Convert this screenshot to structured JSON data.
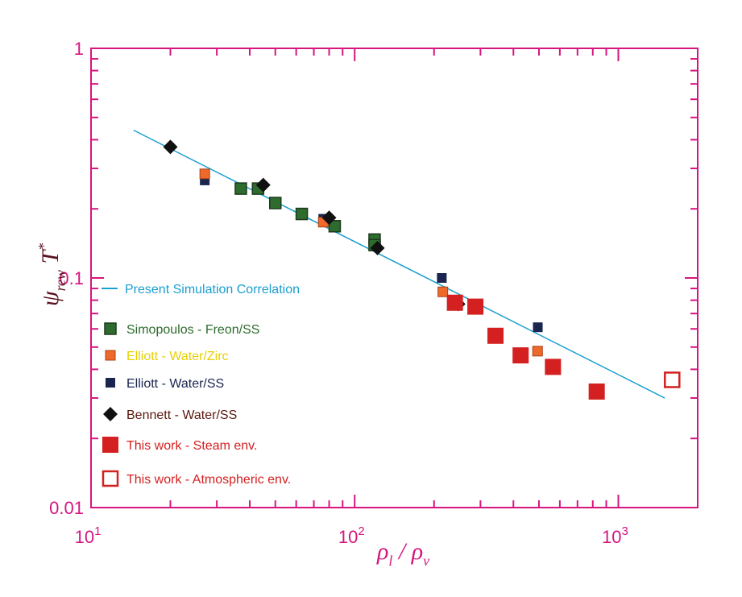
{
  "chart_data": {
    "type": "scatter",
    "x_scale": "log",
    "y_scale": "log",
    "xlim": [
      10,
      2000
    ],
    "ylim": [
      0.01,
      1
    ],
    "x_ticks": [
      {
        "value": 10,
        "label": "10",
        "exp": "1"
      },
      {
        "value": 100,
        "label": "10",
        "exp": "2"
      },
      {
        "value": 1000,
        "label": "10",
        "exp": "3"
      }
    ],
    "y_ticks": [
      {
        "value": 1,
        "label": "1"
      },
      {
        "value": 0.1,
        "label": "0.1"
      },
      {
        "value": 0.01,
        "label": "0.01"
      }
    ],
    "xlabel": {
      "rho": "ρ",
      "sub_l": "l",
      "slash": " / ",
      "sub_v": "v"
    },
    "ylabel": {
      "psi": "ψ",
      "sub": "rew",
      "T": "T",
      "sup": "*"
    },
    "colors": {
      "axis": "#d6157f",
      "correlation": "#1b9fce",
      "simopoulos": "#2e6b2e",
      "elliott_zirc_fill": "#ef6a2a",
      "elliott_zirc_text": "#e8d000",
      "elliott_ss": "#1a2550",
      "bennett": "#111111",
      "bennett_text": "#5b1a10",
      "steam": "#d42020",
      "atmospheric": "#d42020"
    },
    "series": [
      {
        "name": "Present Simulation Correlation",
        "kind": "line",
        "points": [
          [
            14.5,
            0.44
          ],
          [
            1500,
            0.03
          ]
        ]
      },
      {
        "name": "Simopoulos - Freon/SS",
        "kind": "square-green",
        "points": [
          [
            37,
            0.245
          ],
          [
            43,
            0.245
          ],
          [
            50,
            0.212
          ],
          [
            63,
            0.19
          ],
          [
            84,
            0.168
          ],
          [
            119,
            0.147
          ],
          [
            119,
            0.139
          ]
        ]
      },
      {
        "name": "Elliott - Water/Zirc",
        "kind": "square-orange",
        "points": [
          [
            27,
            0.284
          ],
          [
            76,
            0.175
          ],
          [
            216,
            0.087
          ],
          [
            494,
            0.048
          ]
        ]
      },
      {
        "name": "Elliott - Water/SS",
        "kind": "square-navy",
        "points": [
          [
            27,
            0.266
          ],
          [
            76,
            0.181
          ],
          [
            214,
            0.1
          ],
          [
            495,
            0.061
          ]
        ]
      },
      {
        "name": "Bennett - Water/SS",
        "kind": "diamond",
        "points": [
          [
            20,
            0.372
          ],
          [
            45,
            0.254
          ],
          [
            80,
            0.183
          ],
          [
            122,
            0.135
          ],
          [
            247,
            0.077
          ]
        ]
      },
      {
        "name": "This work - Steam env.",
        "kind": "square-red",
        "points": [
          [
            240,
            0.078
          ],
          [
            287,
            0.075
          ],
          [
            342,
            0.056
          ],
          [
            426,
            0.046
          ],
          [
            565,
            0.041
          ],
          [
            828,
            0.032
          ]
        ]
      },
      {
        "name": "This work - Atmospheric  env.",
        "kind": "square-open",
        "points": [
          [
            1600,
            0.036
          ]
        ]
      }
    ],
    "legend": {
      "placement": "left-center",
      "entries": [
        {
          "series": "Present Simulation Correlation",
          "color": "#1b9fce"
        },
        {
          "series": "Simopoulos - Freon/SS",
          "color": "#2e6b2e"
        },
        {
          "series": "Elliott - Water/Zirc",
          "color": "#e8d000"
        },
        {
          "series": "Elliott - Water/SS",
          "color": "#1a2550"
        },
        {
          "series": "Bennett - Water/SS",
          "color": "#5b1a10"
        },
        {
          "series": "This work - Steam env.",
          "color": "#d42020"
        },
        {
          "series": "This work - Atmospheric  env.",
          "color": "#d42020"
        }
      ]
    }
  }
}
